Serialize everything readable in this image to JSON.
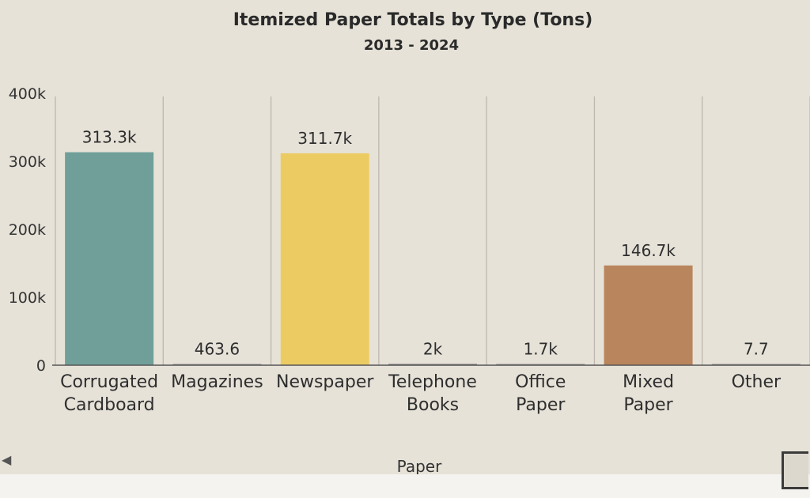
{
  "chart_data": {
    "type": "bar",
    "title": "Itemized Paper Totals by Type (Tons)",
    "subtitle": "2013 - 2024",
    "xlabel": "Paper",
    "ylabel": "",
    "ylim": [
      0,
      400000
    ],
    "yticks": [
      {
        "value": 0,
        "label": "0"
      },
      {
        "value": 100000,
        "label": "100k"
      },
      {
        "value": 200000,
        "label": "200k"
      },
      {
        "value": 300000,
        "label": "300k"
      },
      {
        "value": 400000,
        "label": "400k"
      }
    ],
    "categories": [
      [
        "Corrugated",
        "Cardboard"
      ],
      [
        "Magazines"
      ],
      [
        "Newspaper"
      ],
      [
        "Telephone",
        "Books"
      ],
      [
        "Office",
        "Paper"
      ],
      [
        "Mixed",
        "Paper"
      ],
      [
        "Other"
      ]
    ],
    "values": [
      313300,
      463.6,
      311700,
      2000,
      1700,
      146700,
      7.7
    ],
    "data_labels": [
      "313.3k",
      "463.6",
      "311.7k",
      "2k",
      "1.7k",
      "146.7k",
      "7.7"
    ],
    "colors": [
      "#6f9f98",
      "#8a8a8a",
      "#eccb63",
      "#8a8a8a",
      "#8a8a8a",
      "#b9855c",
      "#8a8a8a"
    ],
    "grid": true,
    "legend": "none"
  },
  "icons": {
    "nav_left": "caret-left-icon",
    "nav_right": "next-page-icon"
  }
}
